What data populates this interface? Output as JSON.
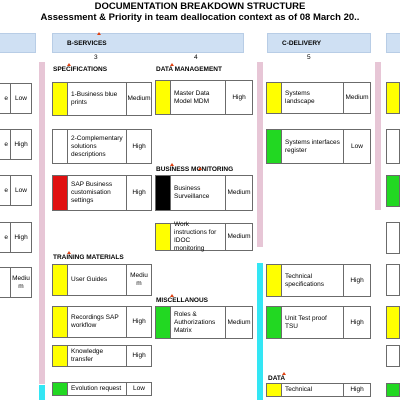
{
  "header": {
    "title": "DOCUMENTATION BREAKDOWN STRUCTURE",
    "subtitle": "Assessment & Priority in team deallocation context as of 08 March 20.."
  },
  "colors": {
    "yellow": "#ffff00",
    "green": "#22d822",
    "red": "#e01010",
    "black": "#000000",
    "band": "#cfe0f3",
    "pink_bar": "#e7c6d6",
    "cyan_bar": "#33e6f4"
  },
  "sections": {
    "b_services": {
      "label": "B-SERVICES",
      "col_a": "3",
      "col_b": "4"
    },
    "c_delivery": {
      "label": "C-DELIVERY",
      "col": "5"
    }
  },
  "categories": {
    "specifications": "SPECIFICATIONS",
    "data_management": "DATA MANAGEMENT",
    "business_monitoring": "BUSINESS MONITORING",
    "training_materials": "TRAINING MATERIALS",
    "miscellaneous": "MISCELLANOUS",
    "data": "DATA"
  },
  "left_fragments": [
    {
      "text": "e",
      "level": "Low"
    },
    {
      "text": "e",
      "level": "High"
    },
    {
      "text": "e",
      "level": "Low"
    },
    {
      "text": "e",
      "level": "High"
    },
    {
      "text": "",
      "level": "Mediu m"
    }
  ],
  "cards": {
    "business_blueprints": {
      "text": "1-Business blue prints",
      "level": "Medium",
      "color": "yellow"
    },
    "complementary": {
      "text": "2-Complementary solutions descriptions",
      "level": "High",
      "color": "white"
    },
    "sap_customisation": {
      "text": "SAP Business customisation settings",
      "level": "High",
      "color": "red"
    },
    "user_guides": {
      "text": "User Guides",
      "level": "Mediu m",
      "color": "yellow"
    },
    "recordings_sap": {
      "text": "Recordings SAP workflow",
      "level": "High",
      "color": "yellow"
    },
    "knowledge_transfer": {
      "text": "Knowledge transfer",
      "level": "High",
      "color": "yellow"
    },
    "evolution_request": {
      "text": "Evolution request",
      "level": "Low",
      "color": "green"
    },
    "master_data_model": {
      "text": "Master Data Model MDM",
      "level": "High",
      "color": "yellow"
    },
    "business_surveillance": {
      "text": "Business Surveillance",
      "level": "Medium",
      "color": "black"
    },
    "idoc_monitoring": {
      "text": "Work instructions for IDOC monitoring",
      "level": "Medium",
      "color": "yellow"
    },
    "roles_authorizations": {
      "text": "Roles & Authorizations Matrix",
      "level": "Medium",
      "color": "green"
    },
    "systems_landscape": {
      "text": "Systems landscape",
      "level": "Medium",
      "color": "yellow"
    },
    "systems_interfaces": {
      "text": "Systems interfaces register",
      "level": "Low",
      "color": "green"
    },
    "technical_specs": {
      "text": "Technical specifications",
      "level": "High",
      "color": "yellow"
    },
    "unit_test": {
      "text": "Unit Test proof TSU",
      "level": "High",
      "color": "green"
    },
    "technical_data": {
      "text": "Technical",
      "level": "High",
      "color": "yellow"
    }
  },
  "right_swatches": [
    "yellow",
    "white",
    "green",
    "white",
    "white",
    "yellow",
    "white",
    "green"
  ]
}
